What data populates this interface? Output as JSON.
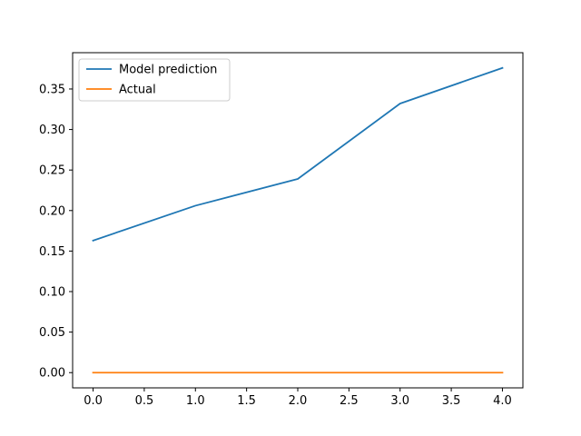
{
  "chart_data": {
    "type": "line",
    "title": "",
    "xlabel": "",
    "ylabel": "",
    "x": [
      0,
      1,
      2,
      3,
      4
    ],
    "series": [
      {
        "name": "Model prediction",
        "color": "#1f77b4",
        "values": [
          0.163,
          0.206,
          0.239,
          0.332,
          0.376
        ]
      },
      {
        "name": "Actual",
        "color": "#ff7f0e",
        "values": [
          0.0,
          0.0,
          0.0,
          0.0,
          0.0
        ]
      }
    ],
    "xlim": [
      -0.2,
      4.2
    ],
    "ylim": [
      -0.0188,
      0.3948
    ],
    "xticks": [
      0.0,
      0.5,
      1.0,
      1.5,
      2.0,
      2.5,
      3.0,
      3.5,
      4.0
    ],
    "xtick_labels": [
      "0.0",
      "0.5",
      "1.0",
      "1.5",
      "2.0",
      "2.5",
      "3.0",
      "3.5",
      "4.0"
    ],
    "yticks": [
      0.0,
      0.05,
      0.1,
      0.15,
      0.2,
      0.25,
      0.3,
      0.35
    ],
    "ytick_labels": [
      "0.00",
      "0.05",
      "0.10",
      "0.15",
      "0.20",
      "0.25",
      "0.30",
      "0.35"
    ],
    "grid": false,
    "legend_position": "upper-left"
  }
}
